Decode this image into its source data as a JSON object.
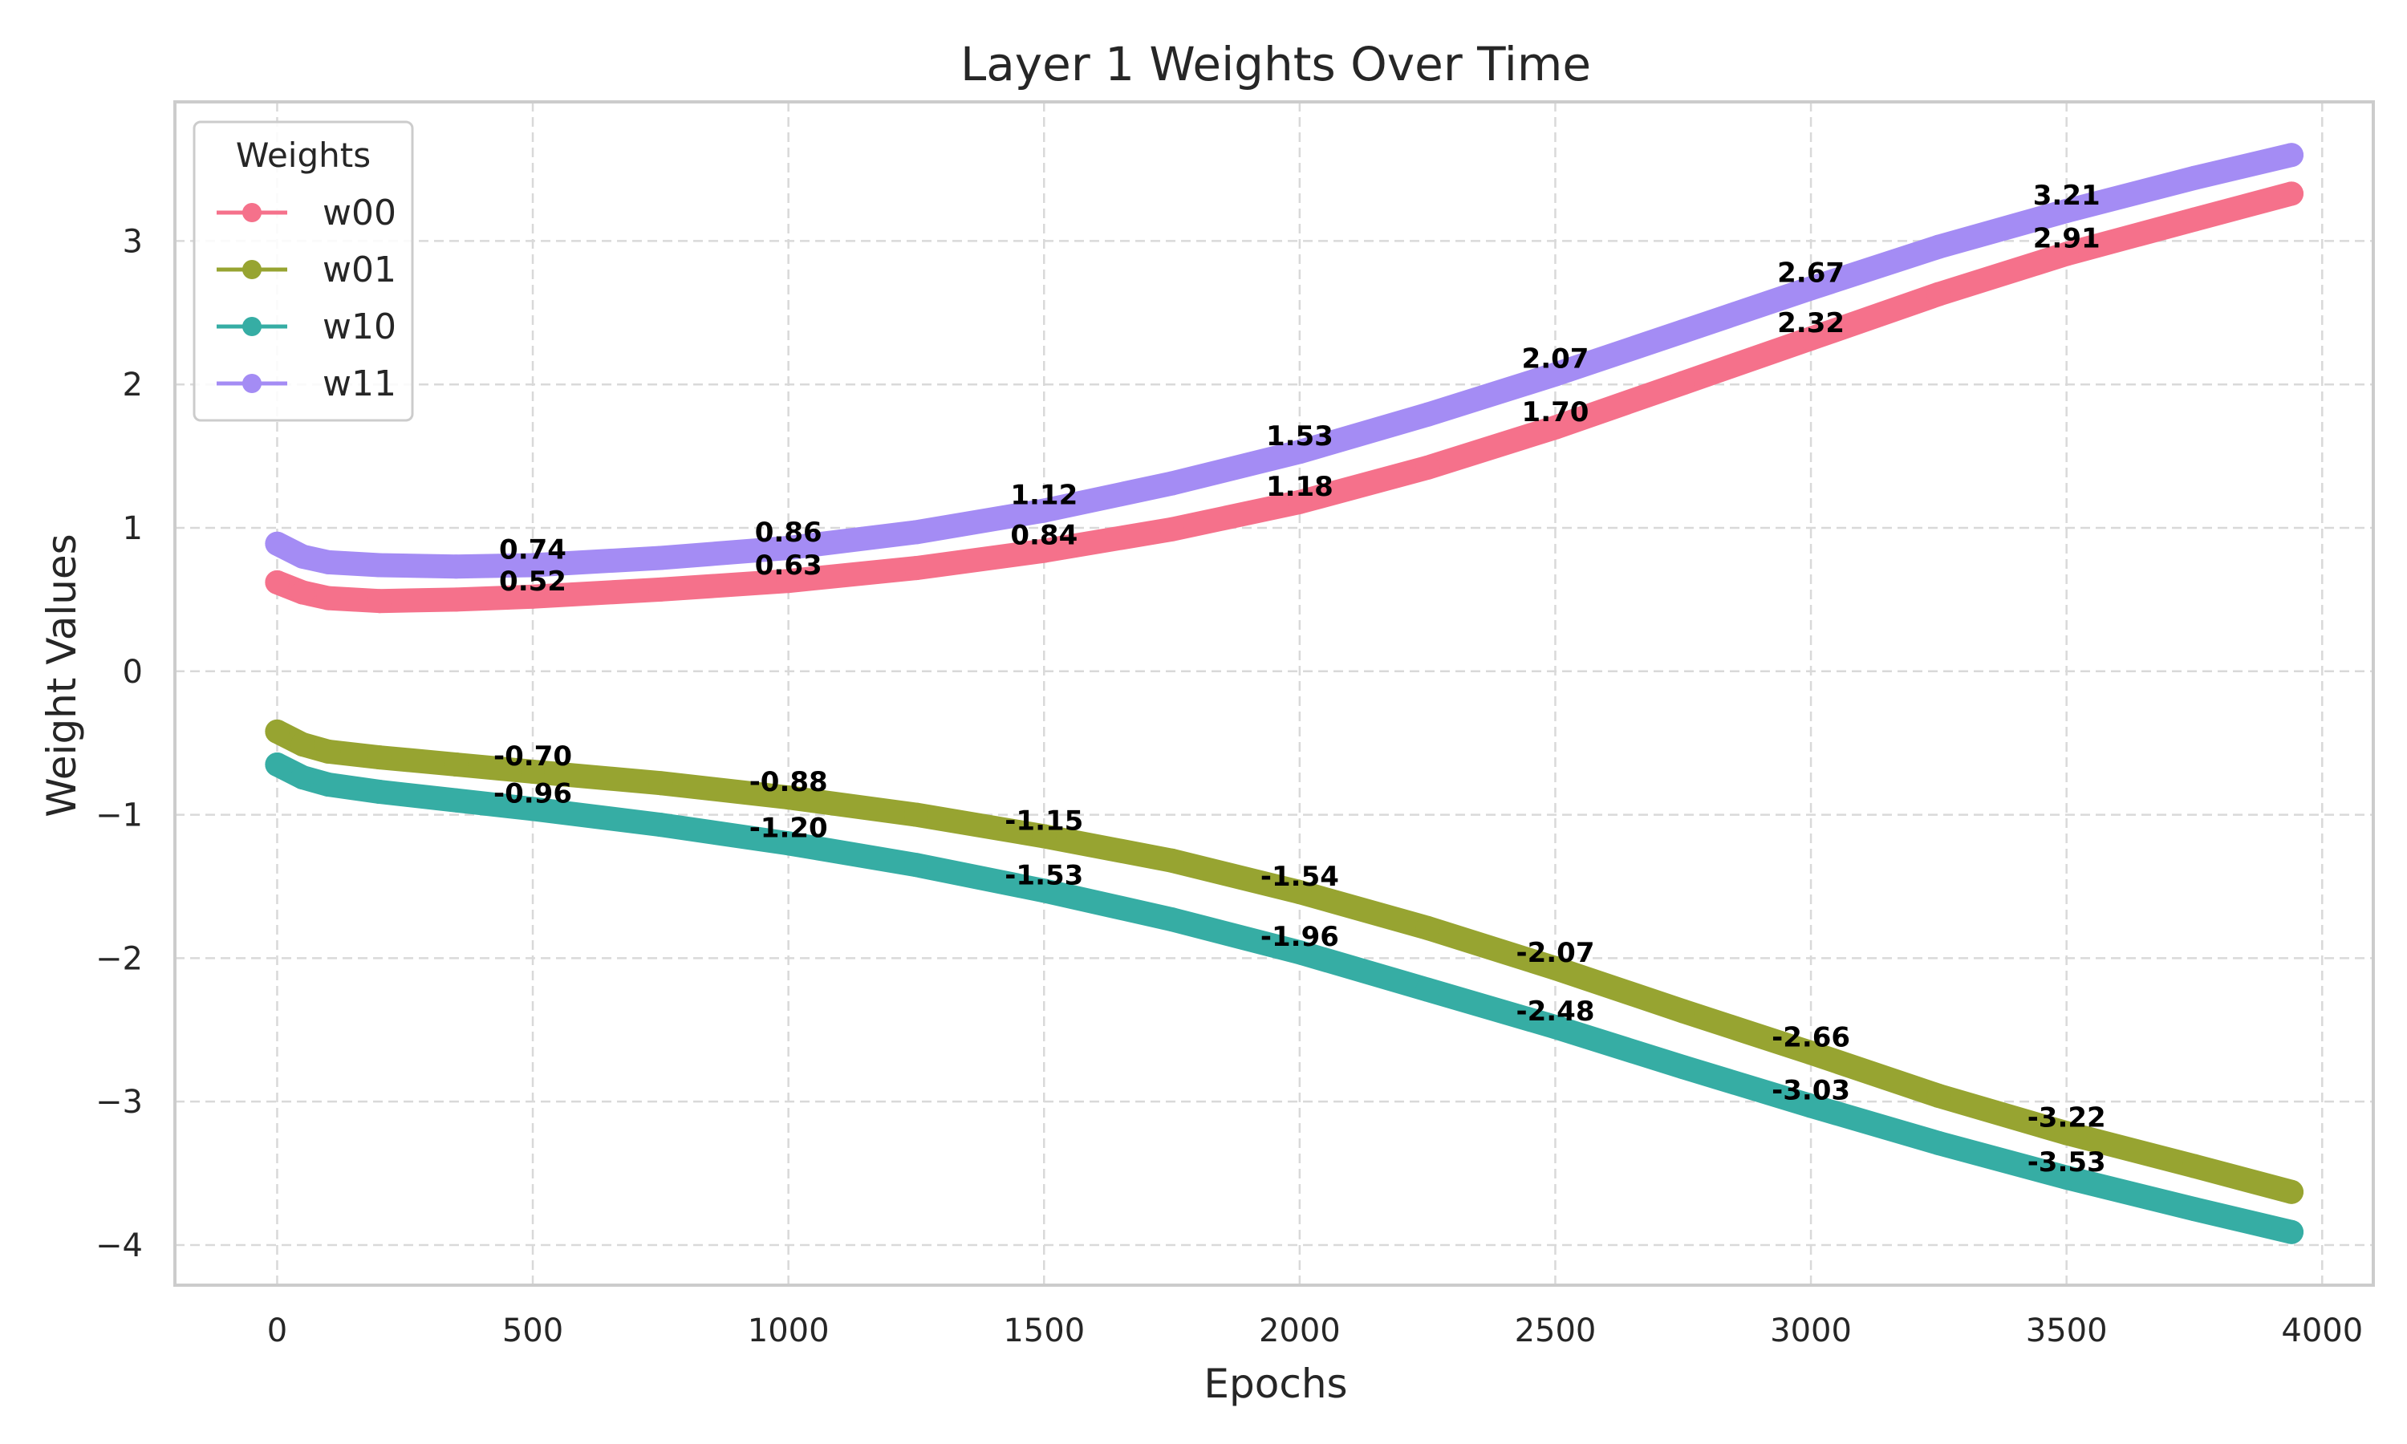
{
  "chart_data": {
    "type": "line",
    "title": "Layer 1 Weights Over Time",
    "xlabel": "Epochs",
    "ylabel": "Weight Values",
    "xlim": [
      -200,
      4100
    ],
    "ylim": [
      -4.28,
      3.97
    ],
    "xticks": [
      0,
      500,
      1000,
      1500,
      2000,
      2500,
      3000,
      3500,
      4000
    ],
    "xtick_labels": [
      "0",
      "500",
      "1000",
      "1500",
      "2000",
      "2500",
      "3000",
      "3500",
      "4000"
    ],
    "yticks": [
      3,
      2,
      1,
      0,
      -1,
      -2,
      -3,
      -4
    ],
    "ytick_labels": [
      "3",
      "2",
      "1",
      "0",
      "−1",
      "−2",
      "−3",
      "−4"
    ],
    "grid": true,
    "legend": {
      "title": "Weights",
      "position": "top-left"
    },
    "series": [
      {
        "name": "w00",
        "color": "#f5718b",
        "x": [
          0,
          50,
          100,
          200,
          350,
          500,
          750,
          1000,
          1250,
          1500,
          1750,
          2000,
          2250,
          2500,
          2750,
          3000,
          3250,
          3500,
          3750,
          3940
        ],
        "y": [
          0.62,
          0.55,
          0.51,
          0.49,
          0.5,
          0.52,
          0.57,
          0.63,
          0.72,
          0.84,
          0.99,
          1.18,
          1.42,
          1.7,
          2.01,
          2.32,
          2.63,
          2.91,
          3.15,
          3.33
        ],
        "labels": [
          {
            "x": 500,
            "y": 0.52,
            "text": "0.52"
          },
          {
            "x": 1000,
            "y": 0.63,
            "text": "0.63"
          },
          {
            "x": 1500,
            "y": 0.84,
            "text": "0.84"
          },
          {
            "x": 2000,
            "y": 1.18,
            "text": "1.18"
          },
          {
            "x": 2500,
            "y": 1.7,
            "text": "1.70"
          },
          {
            "x": 3000,
            "y": 2.32,
            "text": "2.32"
          },
          {
            "x": 3500,
            "y": 2.91,
            "text": "2.91"
          }
        ]
      },
      {
        "name": "w01",
        "color": "#97a431",
        "x": [
          0,
          50,
          100,
          200,
          350,
          500,
          750,
          1000,
          1250,
          1500,
          1750,
          2000,
          2250,
          2500,
          2750,
          3000,
          3250,
          3500,
          3750,
          3940
        ],
        "y": [
          -0.42,
          -0.51,
          -0.56,
          -0.6,
          -0.65,
          -0.7,
          -0.78,
          -0.88,
          -1.0,
          -1.15,
          -1.32,
          -1.54,
          -1.79,
          -2.07,
          -2.37,
          -2.66,
          -2.96,
          -3.22,
          -3.45,
          -3.63
        ],
        "labels": [
          {
            "x": 500,
            "y": -0.7,
            "text": "-0.70"
          },
          {
            "x": 1000,
            "y": -0.88,
            "text": "-0.88"
          },
          {
            "x": 1500,
            "y": -1.15,
            "text": "-1.15"
          },
          {
            "x": 2000,
            "y": -1.54,
            "text": "-1.54"
          },
          {
            "x": 2500,
            "y": -2.07,
            "text": "-2.07"
          },
          {
            "x": 3000,
            "y": -2.66,
            "text": "-2.66"
          },
          {
            "x": 3500,
            "y": -3.22,
            "text": "-3.22"
          }
        ]
      },
      {
        "name": "w10",
        "color": "#36ada4",
        "x": [
          0,
          50,
          100,
          200,
          350,
          500,
          750,
          1000,
          1250,
          1500,
          1750,
          2000,
          2250,
          2500,
          2750,
          3000,
          3250,
          3500,
          3750,
          3940
        ],
        "y": [
          -0.65,
          -0.74,
          -0.79,
          -0.84,
          -0.9,
          -0.96,
          -1.07,
          -1.2,
          -1.35,
          -1.53,
          -1.73,
          -1.96,
          -2.22,
          -2.48,
          -2.76,
          -3.03,
          -3.29,
          -3.53,
          -3.75,
          -3.91
        ],
        "labels": [
          {
            "x": 500,
            "y": -0.96,
            "text": "-0.96"
          },
          {
            "x": 1000,
            "y": -1.2,
            "text": "-1.20"
          },
          {
            "x": 1500,
            "y": -1.53,
            "text": "-1.53"
          },
          {
            "x": 2000,
            "y": -1.96,
            "text": "-1.96"
          },
          {
            "x": 2500,
            "y": -2.48,
            "text": "-2.48"
          },
          {
            "x": 3000,
            "y": -3.03,
            "text": "-3.03"
          },
          {
            "x": 3500,
            "y": -3.53,
            "text": "-3.53"
          }
        ]
      },
      {
        "name": "w11",
        "color": "#a48cf4",
        "x": [
          0,
          50,
          100,
          200,
          350,
          500,
          750,
          1000,
          1250,
          1500,
          1750,
          2000,
          2250,
          2500,
          2750,
          3000,
          3250,
          3500,
          3750,
          3940
        ],
        "y": [
          0.89,
          0.8,
          0.76,
          0.74,
          0.73,
          0.74,
          0.79,
          0.86,
          0.97,
          1.12,
          1.31,
          1.53,
          1.79,
          2.07,
          2.37,
          2.67,
          2.96,
          3.21,
          3.44,
          3.6
        ],
        "labels": [
          {
            "x": 500,
            "y": 0.74,
            "text": "0.74"
          },
          {
            "x": 1000,
            "y": 0.86,
            "text": "0.86"
          },
          {
            "x": 1500,
            "y": 1.12,
            "text": "1.12"
          },
          {
            "x": 2000,
            "y": 1.53,
            "text": "1.53"
          },
          {
            "x": 2500,
            "y": 2.07,
            "text": "2.07"
          },
          {
            "x": 3000,
            "y": 2.67,
            "text": "2.67"
          },
          {
            "x": 3500,
            "y": 3.21,
            "text": "3.21"
          }
        ]
      }
    ]
  }
}
